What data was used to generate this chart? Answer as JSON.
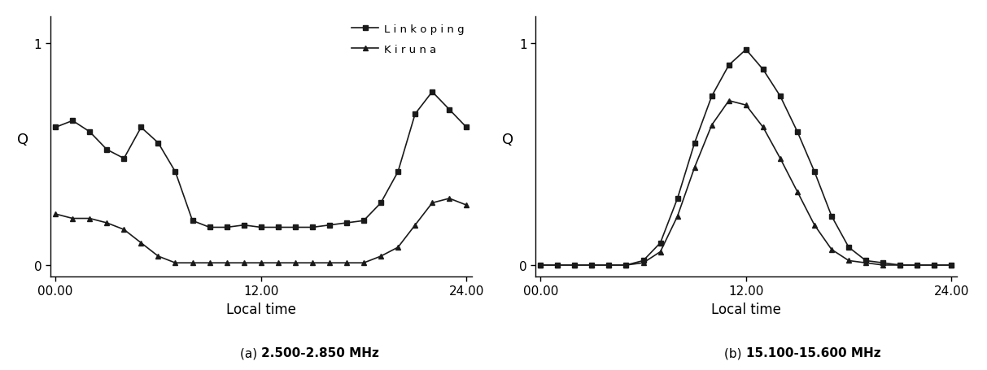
{
  "chart_a": {
    "linkoping_x": [
      0,
      1,
      2,
      3,
      4,
      5,
      6,
      7,
      8,
      9,
      10,
      11,
      12,
      13,
      14,
      15,
      16,
      17,
      18,
      19,
      20,
      21,
      22,
      23,
      24
    ],
    "linkoping_y": [
      0.62,
      0.65,
      0.6,
      0.52,
      0.48,
      0.62,
      0.55,
      0.42,
      0.2,
      0.17,
      0.17,
      0.18,
      0.17,
      0.17,
      0.17,
      0.17,
      0.18,
      0.19,
      0.2,
      0.28,
      0.42,
      0.68,
      0.78,
      0.7,
      0.62
    ],
    "kiruna_x": [
      0,
      1,
      2,
      3,
      4,
      5,
      6,
      7,
      8,
      9,
      10,
      11,
      12,
      13,
      14,
      15,
      16,
      17,
      18,
      19,
      20,
      21,
      22,
      23,
      24
    ],
    "kiruna_y": [
      0.23,
      0.21,
      0.21,
      0.19,
      0.16,
      0.1,
      0.04,
      0.01,
      0.01,
      0.01,
      0.01,
      0.01,
      0.01,
      0.01,
      0.01,
      0.01,
      0.01,
      0.01,
      0.01,
      0.04,
      0.08,
      0.18,
      0.28,
      0.3,
      0.27
    ]
  },
  "chart_b": {
    "linkoping_x": [
      0,
      1,
      2,
      3,
      4,
      5,
      6,
      7,
      8,
      9,
      10,
      11,
      12,
      13,
      14,
      15,
      16,
      17,
      18,
      19,
      20,
      21,
      22,
      23,
      24
    ],
    "linkoping_y": [
      0.0,
      0.0,
      0.0,
      0.0,
      0.0,
      0.0,
      0.02,
      0.1,
      0.3,
      0.55,
      0.76,
      0.9,
      0.97,
      0.88,
      0.76,
      0.6,
      0.42,
      0.22,
      0.08,
      0.02,
      0.01,
      0.0,
      0.0,
      0.0,
      0.0
    ],
    "kiruna_x": [
      0,
      1,
      2,
      3,
      4,
      5,
      6,
      7,
      8,
      9,
      10,
      11,
      12,
      13,
      14,
      15,
      16,
      17,
      18,
      19,
      20,
      21,
      22,
      23,
      24
    ],
    "kiruna_y": [
      0.0,
      0.0,
      0.0,
      0.0,
      0.0,
      0.0,
      0.01,
      0.06,
      0.22,
      0.44,
      0.63,
      0.74,
      0.72,
      0.62,
      0.48,
      0.33,
      0.18,
      0.07,
      0.02,
      0.01,
      0.0,
      0.0,
      0.0,
      0.0,
      0.0
    ]
  },
  "legend_label_linkoping": "L i n k o p i n g",
  "legend_label_kiruna": "K i r u n a",
  "xlabel": "Local time",
  "ylabel": "Q",
  "xticks": [
    0,
    12,
    24
  ],
  "xticklabels": [
    "00.00",
    "12.00",
    "24.00"
  ],
  "yticks": [
    0,
    1
  ],
  "ylim": [
    -0.05,
    1.12
  ],
  "xlim": [
    -0.3,
    24.3
  ],
  "line_color": "#1a1a1a",
  "marker_square": "s",
  "marker_triangle": "^",
  "markersize": 5,
  "linewidth": 1.2,
  "title_a_normal": "(a) ",
  "title_a_bold": "2.500-2.850 MHz",
  "title_b_normal": "(b) ",
  "title_b_bold": "15.100-15.600 MHz",
  "background_color": "#ffffff"
}
